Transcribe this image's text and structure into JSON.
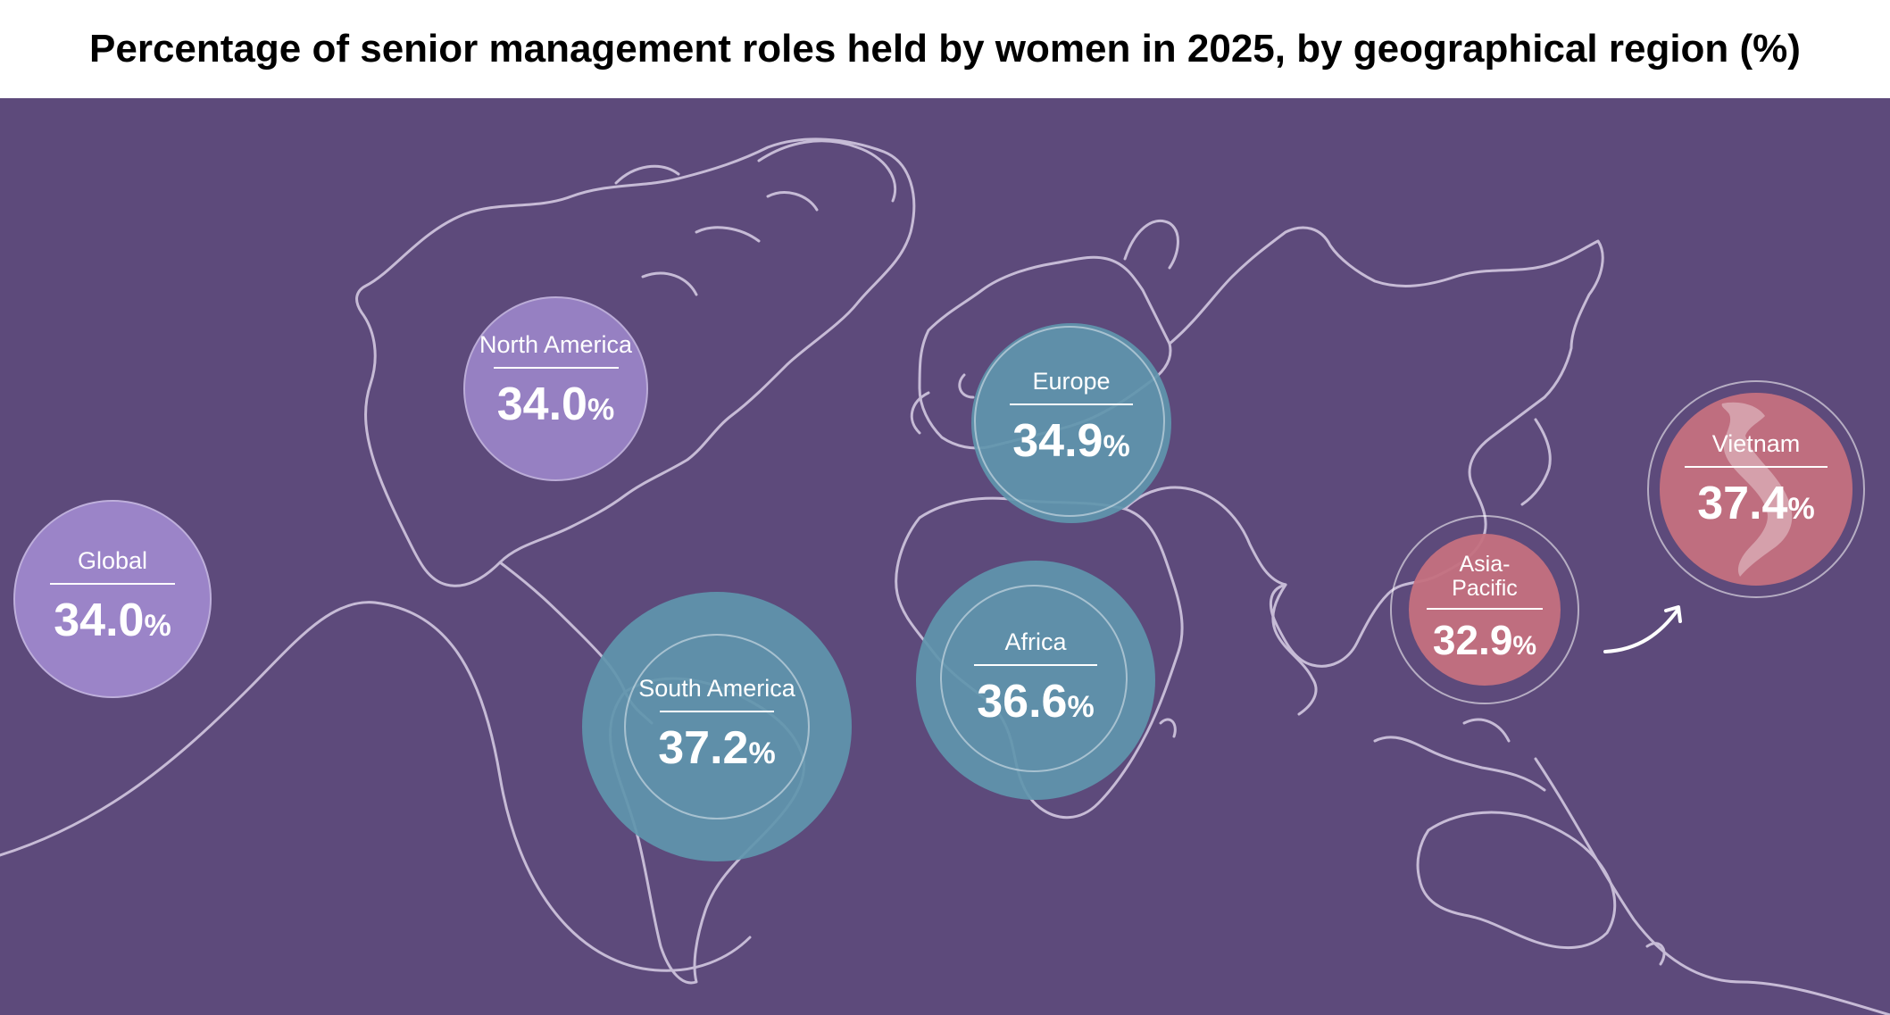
{
  "chart_data": {
    "type": "bubble-map",
    "title": "Percentage of senior management roles held by women in 2025, by geographical region (%)",
    "unit": "%",
    "regions": [
      {
        "name": "North America",
        "value": 34.0,
        "value_label": "34.0",
        "color": "#9b84c8"
      },
      {
        "name": "Global",
        "value": 34.0,
        "value_label": "34.0",
        "color": "#9b84c8"
      },
      {
        "name": "South America",
        "value": 37.2,
        "value_label": "37.2",
        "color": "#5f95ac"
      },
      {
        "name": "Europe",
        "value": 34.9,
        "value_label": "34.9",
        "color": "#5f95ac"
      },
      {
        "name": "Africa",
        "value": 36.6,
        "value_label": "36.6",
        "color": "#5f95ac"
      },
      {
        "name": "Asia-\nPacific",
        "value": 32.9,
        "value_label": "32.9",
        "color": "#c47080"
      },
      {
        "name": "Vietnam",
        "value": 37.4,
        "value_label": "37.4",
        "color": "#c47080"
      }
    ]
  },
  "colors": {
    "background": "#5d4a7b",
    "purple_bubble": "#9b84c8",
    "teal_bubble": "#5f95ac",
    "pink_bubble": "#c47080",
    "outline": "#d9cfe6"
  },
  "icons": [
    "world-map-outline",
    "curved-arrow-icon",
    "vietnam-map-silhouette"
  ]
}
